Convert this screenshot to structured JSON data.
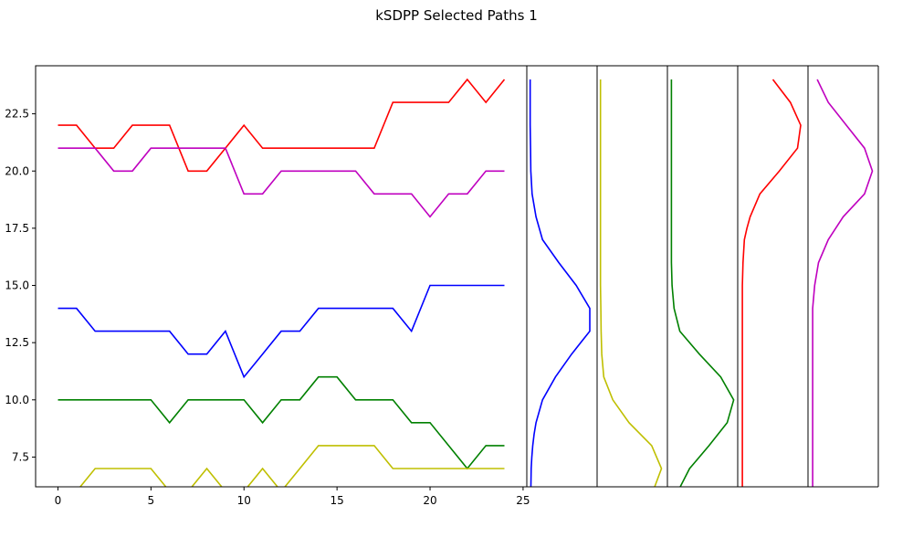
{
  "figure": {
    "title": "kSDPP Selected Paths 1"
  },
  "chart_data": {
    "type": "line",
    "title": "kSDPP Selected Paths 1",
    "xlabel": "",
    "ylabel": "",
    "xlim": [
      -1.2,
      25.2
    ],
    "ylim": [
      6.2,
      24.6
    ],
    "xticks": [
      0,
      5,
      10,
      15,
      20,
      25
    ],
    "yticks": [
      7.5,
      10.0,
      12.5,
      15.0,
      17.5,
      20.0,
      22.5
    ],
    "ytick_labels": [
      "7.5",
      "10.0",
      "12.5",
      "15.0",
      "17.5",
      "20.0",
      "22.5"
    ],
    "grid": false,
    "legend": false,
    "x": [
      0,
      1,
      2,
      3,
      4,
      5,
      6,
      7,
      8,
      9,
      10,
      11,
      12,
      13,
      14,
      15,
      16,
      17,
      18,
      19,
      20,
      21,
      22,
      23,
      24
    ],
    "series": [
      {
        "color": "#ff0000",
        "values": [
          22,
          22,
          21,
          21,
          22,
          22,
          22,
          20,
          20,
          21,
          22,
          21,
          21,
          21,
          21,
          21,
          21,
          21,
          23,
          23,
          23,
          23,
          24,
          23,
          24
        ]
      },
      {
        "color": "#bf00bf",
        "values": [
          21,
          21,
          21,
          20,
          20,
          21,
          21,
          21,
          21,
          21,
          19,
          19,
          20,
          20,
          20,
          20,
          20,
          19,
          19,
          19,
          18,
          19,
          19,
          20,
          20
        ]
      },
      {
        "color": "#0000ff",
        "values": [
          14,
          14,
          13,
          13,
          13,
          13,
          13,
          12,
          12,
          13,
          11,
          12,
          13,
          13,
          14,
          14,
          14,
          14,
          14,
          13,
          15,
          15,
          15,
          15,
          15
        ]
      },
      {
        "color": "#008000",
        "values": [
          10,
          10,
          10,
          10,
          10,
          10,
          9,
          10,
          10,
          10,
          10,
          9,
          10,
          10,
          11,
          11,
          10,
          10,
          10,
          9,
          9,
          8,
          7,
          8,
          8
        ]
      },
      {
        "color": "#bfbf00",
        "values": [
          6,
          6,
          7,
          7,
          7,
          7,
          6,
          6,
          7,
          6,
          6,
          7,
          6,
          7,
          8,
          8,
          8,
          8,
          7,
          7,
          7,
          7,
          7,
          7,
          7
        ]
      }
    ],
    "marginals": [
      {
        "color": "#0000ff",
        "y": [
          6,
          7,
          7.5,
          8,
          8.5,
          9,
          10,
          11,
          12,
          13,
          14,
          15,
          16,
          17,
          18,
          19,
          20,
          21,
          22,
          23,
          24
        ],
        "density": [
          0.02,
          0.025,
          0.035,
          0.05,
          0.07,
          0.1,
          0.2,
          0.4,
          0.65,
          0.93,
          0.93,
          0.72,
          0.45,
          0.2,
          0.1,
          0.04,
          0.02,
          0.015,
          0.01,
          0.01,
          0.01
        ]
      },
      {
        "color": "#bfbf00",
        "y": [
          6,
          7,
          8,
          9,
          10,
          11,
          12,
          13,
          14,
          15,
          16,
          17,
          18,
          19,
          20,
          21,
          22,
          23,
          24
        ],
        "density": [
          0.82,
          0.95,
          0.8,
          0.45,
          0.2,
          0.06,
          0.03,
          0.02,
          0.015,
          0.01,
          0.01,
          0.01,
          0.01,
          0.01,
          0.01,
          0.01,
          0.01,
          0.01,
          0.01
        ]
      },
      {
        "color": "#008000",
        "y": [
          6,
          7,
          8,
          9,
          10,
          11,
          12,
          13,
          14,
          15,
          16,
          17,
          18,
          19,
          20,
          21,
          22,
          23,
          24
        ],
        "density": [
          0.12,
          0.3,
          0.6,
          0.88,
          0.98,
          0.78,
          0.45,
          0.15,
          0.06,
          0.03,
          0.02,
          0.02,
          0.02,
          0.02,
          0.02,
          0.02,
          0.02,
          0.02,
          0.02
        ]
      },
      {
        "color": "#ff0000",
        "y": [
          6,
          7,
          8,
          9,
          10,
          11,
          12,
          13,
          14,
          15,
          16,
          17,
          17.5,
          18,
          19,
          20,
          21,
          22,
          23,
          24
        ],
        "density": [
          0.03,
          0.03,
          0.03,
          0.03,
          0.03,
          0.03,
          0.03,
          0.03,
          0.03,
          0.03,
          0.04,
          0.06,
          0.1,
          0.15,
          0.3,
          0.6,
          0.88,
          0.93,
          0.77,
          0.5
        ]
      },
      {
        "color": "#bf00bf",
        "y": [
          6,
          7,
          8,
          9,
          10,
          11,
          12,
          13,
          14,
          15,
          16,
          17,
          18,
          19,
          20,
          21,
          22,
          23,
          24
        ],
        "density": [
          0.03,
          0.03,
          0.03,
          0.03,
          0.03,
          0.03,
          0.03,
          0.03,
          0.03,
          0.06,
          0.12,
          0.27,
          0.5,
          0.83,
          0.95,
          0.83,
          0.55,
          0.27,
          0.1
        ]
      }
    ]
  },
  "colors": {
    "axis": "#000000",
    "background": "#ffffff"
  }
}
